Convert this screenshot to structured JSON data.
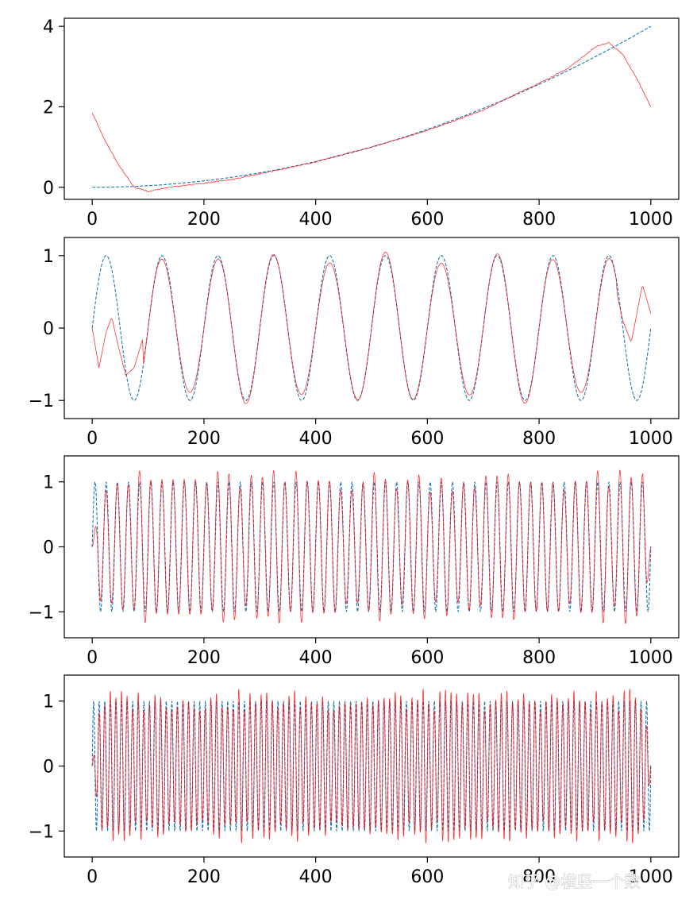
{
  "watermark": "知乎 @横竖一个数",
  "colors": {
    "target_line": "#1f77b4",
    "fitted_line": "#ff0000",
    "axes": "#000000",
    "background": "#ffffff"
  },
  "chart_data": [
    {
      "type": "line",
      "title": "",
      "xlabel": "",
      "ylabel": "",
      "xlim": [
        -50,
        1050
      ],
      "ylim": [
        -0.3,
        4.2
      ],
      "xticks": [
        0,
        200,
        400,
        600,
        800,
        1000
      ],
      "yticks": [
        0,
        2,
        4
      ],
      "grid": false,
      "series": [
        {
          "style": "dashed",
          "color": "#1f77b4",
          "formula": "4*(x/1000)^2",
          "x_range": [
            0,
            1000
          ]
        },
        {
          "style": "solid",
          "color": "#ff0000",
          "x": [
            0,
            25,
            50,
            75,
            100,
            150,
            200,
            250,
            300,
            350,
            400,
            450,
            500,
            550,
            600,
            650,
            700,
            750,
            800,
            850,
            900,
            925,
            950,
            975,
            1000
          ],
          "y": [
            1.85,
            1.1,
            0.5,
            0.0,
            -0.1,
            0.02,
            0.1,
            0.2,
            0.33,
            0.48,
            0.63,
            0.82,
            1.0,
            1.2,
            1.42,
            1.66,
            1.92,
            2.26,
            2.58,
            2.94,
            3.48,
            3.6,
            3.3,
            2.7,
            2.0
          ]
        }
      ]
    },
    {
      "type": "line",
      "title": "",
      "xlabel": "",
      "ylabel": "",
      "xlim": [
        -50,
        1050
      ],
      "ylim": [
        -1.25,
        1.25
      ],
      "xticks": [
        0,
        200,
        400,
        600,
        800,
        1000
      ],
      "yticks": [
        -1,
        0,
        1
      ],
      "grid": false,
      "series": [
        {
          "style": "dashed",
          "color": "#1f77b4",
          "formula": "sin(2*pi*x/100)",
          "x_range": [
            0,
            1000
          ]
        },
        {
          "style": "solid",
          "color": "#ff0000",
          "x": [
            0,
            12,
            25,
            35,
            45,
            60,
            75,
            100,
            125,
            150,
            175,
            225,
            275,
            325,
            375,
            425,
            475,
            525,
            575,
            625,
            675,
            725,
            775,
            825,
            875,
            925,
            950,
            965,
            985,
            1000
          ],
          "y": [
            0.0,
            -0.55,
            -0.05,
            0.15,
            -0.2,
            -0.65,
            -0.55,
            0.1,
            1.05,
            0.1,
            -1.0,
            1.0,
            -1.0,
            1.12,
            -1.08,
            1.05,
            -1.15,
            1.0,
            -1.0,
            1.02,
            -1.1,
            1.0,
            -0.95,
            0.98,
            -1.02,
            0.98,
            0.1,
            -0.2,
            0.6,
            0.2
          ]
        }
      ]
    },
    {
      "type": "line",
      "title": "",
      "xlabel": "",
      "ylabel": "",
      "xlim": [
        -50,
        1050
      ],
      "ylim": [
        -1.4,
        1.4
      ],
      "xticks": [
        0,
        200,
        400,
        600,
        800,
        1000
      ],
      "yticks": [
        -1,
        0,
        1
      ],
      "grid": false,
      "series": [
        {
          "style": "dashed",
          "color": "#1f77b4",
          "formula": "sin(2*pi*x/20)",
          "x_range": [
            0,
            1000
          ]
        },
        {
          "style": "solid",
          "color": "#ff0000",
          "formula": "fitted approximation of sin(2*pi*x/20), peak deviations up to 1.3",
          "x_range": [
            0,
            1000
          ]
        }
      ]
    },
    {
      "type": "line",
      "title": "",
      "xlabel": "",
      "ylabel": "",
      "xlim": [
        -50,
        1050
      ],
      "ylim": [
        -1.4,
        1.4
      ],
      "xticks": [
        0,
        200,
        400,
        600,
        800,
        1000
      ],
      "yticks": [
        -1,
        0,
        1
      ],
      "grid": false,
      "series": [
        {
          "style": "dashed",
          "color": "#1f77b4",
          "formula": "sin(2*pi*x/10)",
          "x_range": [
            0,
            1000
          ]
        },
        {
          "style": "solid",
          "color": "#ff0000",
          "formula": "fitted approximation of sin(2*pi*x/10), peak deviations up to 1.3",
          "x_range": [
            0,
            1000
          ]
        }
      ]
    }
  ]
}
